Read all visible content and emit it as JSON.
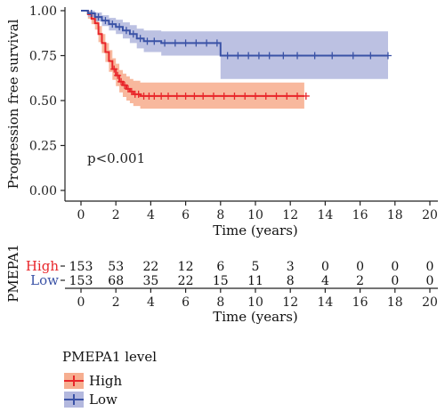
{
  "chart_data": {
    "type": "line",
    "subtype": "kaplan-meier",
    "ylabel": "Progression free survival",
    "xlabel": "Time (years)",
    "xlim": [
      0,
      20
    ],
    "ylim": [
      0,
      1
    ],
    "x_ticks": [
      "0",
      "2",
      "4",
      "6",
      "8",
      "10",
      "12",
      "14",
      "16",
      "18",
      "20"
    ],
    "y_ticks": [
      "0.00",
      "0.25",
      "0.50",
      "0.75",
      "1.00"
    ],
    "grid": false,
    "annotation": "p<0.001",
    "series": [
      {
        "name": "High",
        "color": "#e8262a",
        "band_color": "#f5a07c",
        "steps": [
          [
            0,
            1.0
          ],
          [
            0.4,
            0.98
          ],
          [
            0.6,
            0.955
          ],
          [
            0.8,
            0.93
          ],
          [
            1.0,
            0.87
          ],
          [
            1.2,
            0.82
          ],
          [
            1.4,
            0.77
          ],
          [
            1.6,
            0.72
          ],
          [
            1.8,
            0.675
          ],
          [
            2.0,
            0.64
          ],
          [
            2.2,
            0.605
          ],
          [
            2.4,
            0.585
          ],
          [
            2.6,
            0.565
          ],
          [
            2.8,
            0.55
          ],
          [
            3.0,
            0.535
          ],
          [
            3.4,
            0.525
          ],
          [
            12.8,
            0.525
          ]
        ],
        "upper": [
          [
            0,
            1.0
          ],
          [
            0.4,
            1.0
          ],
          [
            0.6,
            0.985
          ],
          [
            0.8,
            0.965
          ],
          [
            1.0,
            0.915
          ],
          [
            1.2,
            0.87
          ],
          [
            1.4,
            0.82
          ],
          [
            1.6,
            0.78
          ],
          [
            1.8,
            0.735
          ],
          [
            2.0,
            0.705
          ],
          [
            2.2,
            0.67
          ],
          [
            2.4,
            0.65
          ],
          [
            2.6,
            0.635
          ],
          [
            2.8,
            0.62
          ],
          [
            3.0,
            0.61
          ],
          [
            3.4,
            0.6
          ],
          [
            12.8,
            0.6
          ]
        ],
        "lower": [
          [
            0,
            1.0
          ],
          [
            0.4,
            0.955
          ],
          [
            0.6,
            0.925
          ],
          [
            0.8,
            0.895
          ],
          [
            1.0,
            0.825
          ],
          [
            1.2,
            0.765
          ],
          [
            1.4,
            0.715
          ],
          [
            1.6,
            0.66
          ],
          [
            1.8,
            0.615
          ],
          [
            2.0,
            0.58
          ],
          [
            2.2,
            0.545
          ],
          [
            2.4,
            0.52
          ],
          [
            2.6,
            0.5
          ],
          [
            2.8,
            0.485
          ],
          [
            3.0,
            0.47
          ],
          [
            3.4,
            0.455
          ],
          [
            12.8,
            0.455
          ]
        ],
        "censor_x": [
          1.9,
          2.1,
          2.3,
          2.5,
          2.7,
          2.9,
          3.1,
          3.3,
          3.6,
          3.9,
          4.2,
          4.6,
          5.0,
          5.5,
          6.0,
          6.5,
          7.0,
          7.6,
          8.2,
          8.8,
          9.4,
          10.0,
          10.6,
          11.2,
          11.8,
          12.4,
          12.9
        ]
      },
      {
        "name": "Low",
        "color": "#3a52a6",
        "band_color": "#a6acd8",
        "steps": [
          [
            0,
            1.0
          ],
          [
            0.4,
            0.985
          ],
          [
            0.8,
            0.965
          ],
          [
            1.2,
            0.945
          ],
          [
            1.6,
            0.925
          ],
          [
            2.0,
            0.91
          ],
          [
            2.4,
            0.89
          ],
          [
            2.8,
            0.87
          ],
          [
            3.2,
            0.845
          ],
          [
            3.6,
            0.83
          ],
          [
            4.6,
            0.82
          ],
          [
            8.0,
            0.75
          ],
          [
            17.6,
            0.75
          ]
        ],
        "upper": [
          [
            0,
            1.0
          ],
          [
            0.4,
            1.0
          ],
          [
            0.8,
            0.99
          ],
          [
            1.2,
            0.975
          ],
          [
            1.6,
            0.96
          ],
          [
            2.0,
            0.95
          ],
          [
            2.4,
            0.935
          ],
          [
            2.8,
            0.92
          ],
          [
            3.2,
            0.9
          ],
          [
            3.6,
            0.89
          ],
          [
            4.6,
            0.885
          ],
          [
            8.0,
            0.885
          ],
          [
            17.6,
            0.885
          ]
        ],
        "lower": [
          [
            0,
            1.0
          ],
          [
            0.4,
            0.965
          ],
          [
            0.8,
            0.94
          ],
          [
            1.2,
            0.915
          ],
          [
            1.6,
            0.89
          ],
          [
            2.0,
            0.87
          ],
          [
            2.4,
            0.845
          ],
          [
            2.8,
            0.82
          ],
          [
            3.2,
            0.79
          ],
          [
            3.6,
            0.77
          ],
          [
            4.6,
            0.75
          ],
          [
            8.0,
            0.62
          ],
          [
            17.6,
            0.62
          ]
        ],
        "censor_x": [
          0.6,
          1.0,
          1.4,
          1.8,
          2.2,
          2.6,
          3.0,
          3.4,
          3.8,
          4.2,
          4.8,
          5.4,
          6.0,
          6.6,
          7.2,
          7.8,
          8.4,
          9.0,
          9.6,
          10.2,
          10.8,
          11.6,
          12.4,
          13.4,
          14.4,
          15.6,
          16.6,
          17.6
        ]
      }
    ],
    "risk_table": {
      "ylabel": "PMEPA1",
      "xlabel": "Time (years)",
      "times": [
        0,
        2,
        4,
        6,
        8,
        10,
        12,
        14,
        16,
        18,
        20
      ],
      "rows": [
        {
          "label": "High",
          "color": "#e8262a",
          "counts": [
            "153",
            "53",
            "22",
            "12",
            "6",
            "5",
            "3",
            "0",
            "0",
            "0",
            "0"
          ]
        },
        {
          "label": "Low",
          "color": "#3a52a6",
          "counts": [
            "153",
            "68",
            "35",
            "22",
            "15",
            "11",
            "8",
            "4",
            "2",
            "0",
            "0"
          ]
        }
      ]
    },
    "legend": {
      "title": "PMEPA1 level",
      "position": "bottom-left",
      "entries": [
        "High",
        "Low"
      ]
    }
  }
}
